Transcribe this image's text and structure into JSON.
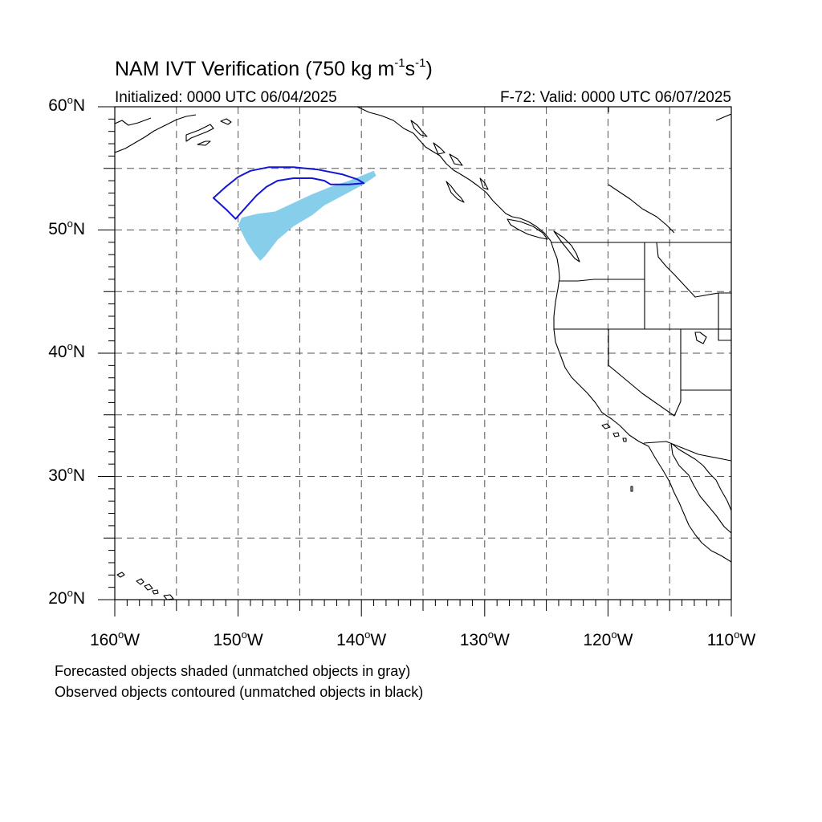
{
  "figure": {
    "title_main": "NAM IVT Verification (750 kg m",
    "title_exp1": "-1",
    "title_mid": "s",
    "title_exp2": "-1",
    "title_close": ")",
    "initialized": "Initialized: 0000 UTC 06/04/2025",
    "valid": "F-72: Valid: 0000 UTC 06/07/2025"
  },
  "map": {
    "extent": {
      "lon_min": -160,
      "lon_max": -110,
      "lat_min": 20,
      "lat_max": 60
    },
    "lat_labels": [
      {
        "lat": 60,
        "value": "60",
        "hemi": "N"
      },
      {
        "lat": 50,
        "value": "50",
        "hemi": "N"
      },
      {
        "lat": 40,
        "value": "40",
        "hemi": "N"
      },
      {
        "lat": 30,
        "value": "30",
        "hemi": "N"
      },
      {
        "lat": 20,
        "value": "20",
        "hemi": "N"
      }
    ],
    "lon_labels": [
      {
        "lon": -160,
        "value": "160",
        "hemi": "W"
      },
      {
        "lon": -150,
        "value": "150",
        "hemi": "W"
      },
      {
        "lon": -140,
        "value": "140",
        "hemi": "W"
      },
      {
        "lon": -130,
        "value": "130",
        "hemi": "W"
      },
      {
        "lon": -120,
        "value": "120",
        "hemi": "W"
      },
      {
        "lon": -110,
        "value": "110",
        "hemi": "W"
      }
    ],
    "grid_lats": [
      25,
      30,
      35,
      40,
      45,
      50,
      55
    ],
    "grid_lons": [
      -155,
      -150,
      -145,
      -140,
      -135,
      -130,
      -125,
      -120,
      -115
    ],
    "gridline_style": "dashed gray",
    "colors": {
      "forecast_object": "#87ceeb",
      "observed_object": "#1515d6",
      "coastline": "#000000",
      "grid": "#555555"
    }
  },
  "objects": {
    "forecast_shaded": [
      [
        [
          -139.0,
          54.8
        ],
        [
          -138.8,
          54.4
        ],
        [
          -140.0,
          53.6
        ],
        [
          -141.5,
          52.8
        ],
        [
          -143.0,
          52.0
        ],
        [
          -144.0,
          51.2
        ],
        [
          -145.5,
          50.3
        ],
        [
          -146.8,
          49.2
        ],
        [
          -147.8,
          47.9
        ],
        [
          -148.2,
          47.5
        ],
        [
          -148.7,
          48.1
        ],
        [
          -149.3,
          49.0
        ],
        [
          -150.0,
          50.4
        ],
        [
          -149.7,
          51.0
        ],
        [
          -148.5,
          51.3
        ],
        [
          -147.0,
          51.5
        ],
        [
          -145.5,
          52.2
        ],
        [
          -144.0,
          52.9
        ],
        [
          -142.5,
          53.5
        ],
        [
          -141.0,
          54.0
        ],
        [
          -140.0,
          54.4
        ]
      ]
    ],
    "observed_contoured": [
      [
        [
          -152.0,
          52.6
        ],
        [
          -151.0,
          53.5
        ],
        [
          -150.0,
          54.3
        ],
        [
          -149.0,
          54.8
        ],
        [
          -147.5,
          55.1
        ],
        [
          -145.5,
          55.1
        ],
        [
          -143.5,
          54.9
        ],
        [
          -141.5,
          54.5
        ],
        [
          -140.3,
          54.1
        ],
        [
          -139.8,
          53.8
        ],
        [
          -141.0,
          53.7
        ],
        [
          -142.5,
          53.7
        ],
        [
          -143.0,
          54.0
        ],
        [
          -144.0,
          54.2
        ],
        [
          -145.5,
          54.2
        ],
        [
          -146.8,
          54.0
        ],
        [
          -147.7,
          53.5
        ],
        [
          -148.5,
          52.8
        ],
        [
          -149.5,
          51.7
        ],
        [
          -150.2,
          50.9
        ],
        [
          -150.9,
          51.6
        ]
      ]
    ]
  },
  "legend": {
    "line1": "Forecasted objects shaded (unmatched objects in gray)",
    "line2": "Observed objects contoured (unmatched objects in black)"
  }
}
